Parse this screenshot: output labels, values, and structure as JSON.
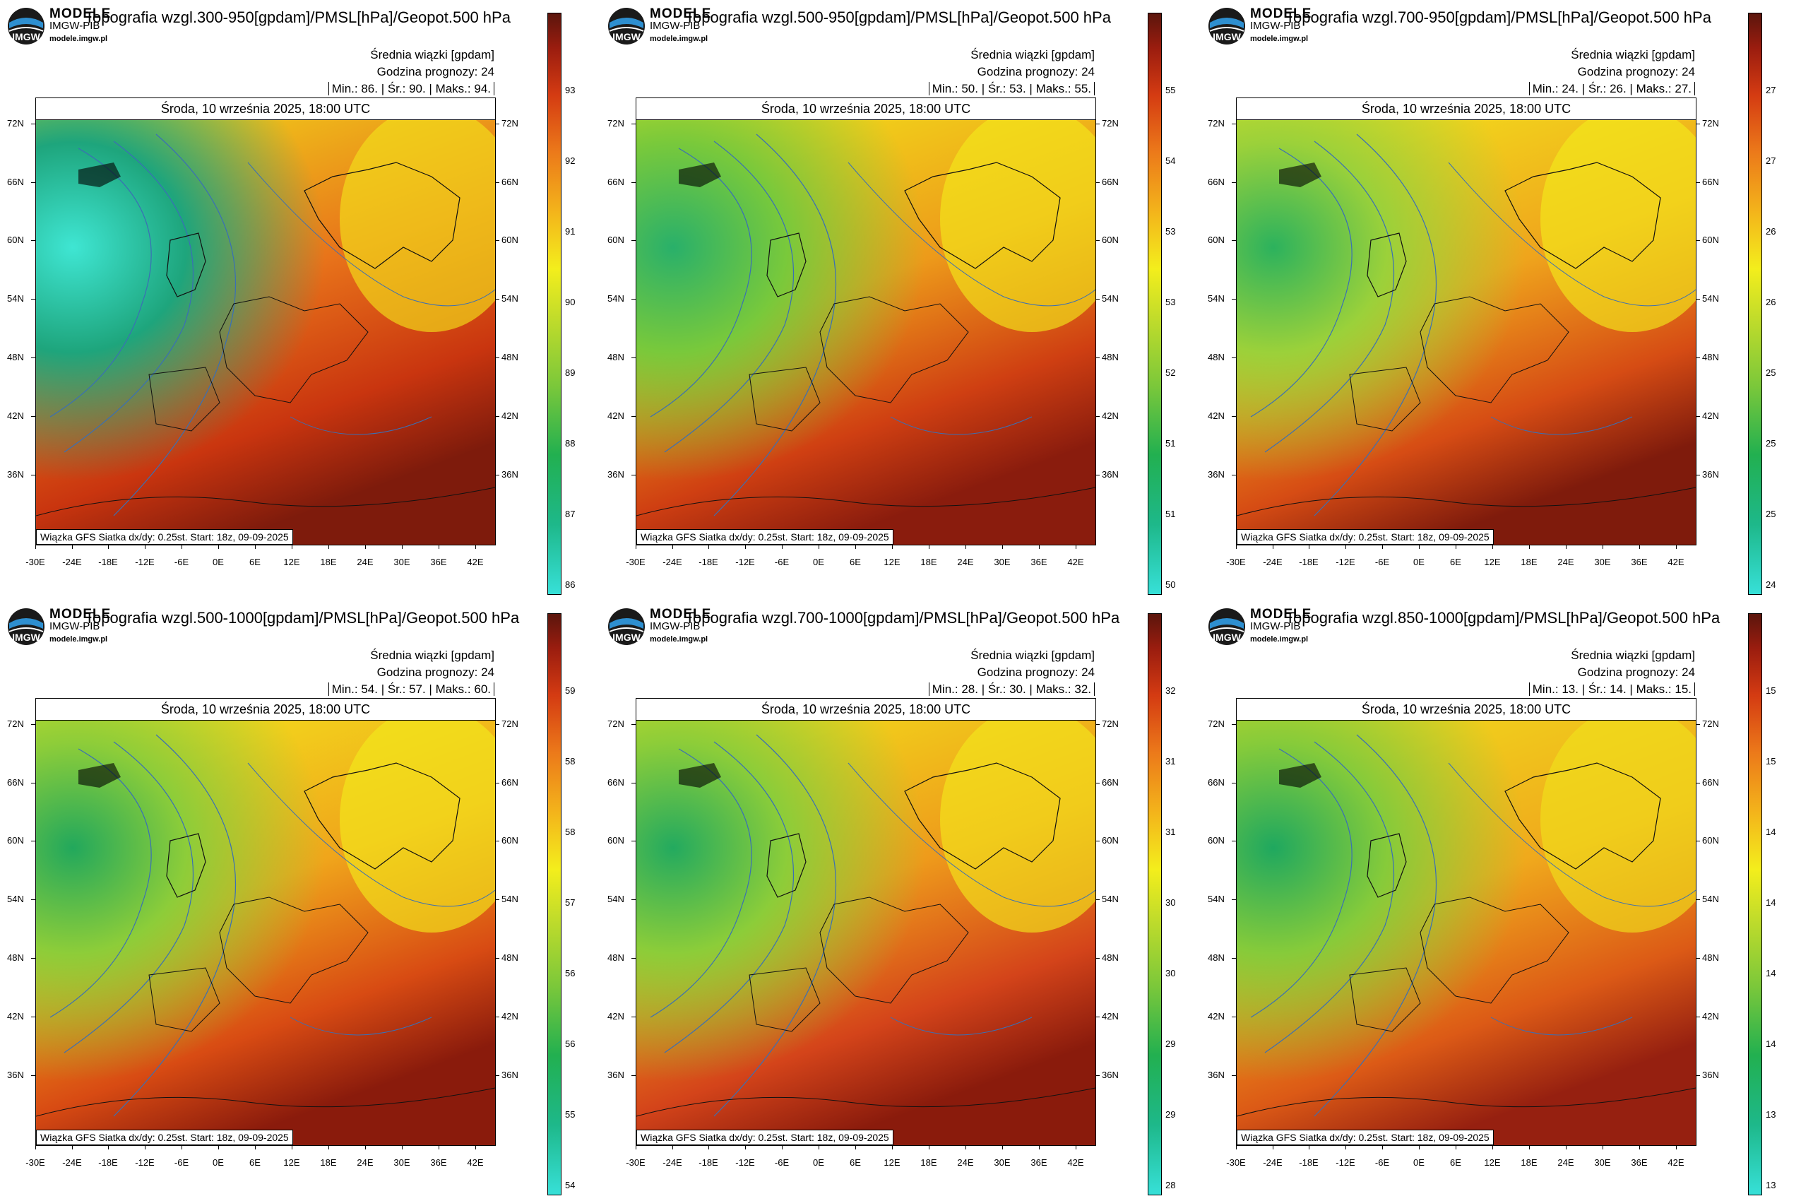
{
  "brand": {
    "line1": "MODELE",
    "line2": "IMGW-PIB",
    "url": "modele.imgw.pl",
    "logo_text": "IMGW"
  },
  "common": {
    "subtitle": "Średnia wiązki [gpdam]",
    "forecast_hour": "Godzina prognozy: 24",
    "valid_time": "Środa, 10 września 2025, 18:00 UTC",
    "footer": "Wiązka GFS Siatka dx/dy: 0.25st. Start: 18z, 09-09-2025",
    "lat_ticks": [
      "72N",
      "66N",
      "60N",
      "54N",
      "48N",
      "42N",
      "36N"
    ],
    "lon_ticks": [
      "-30E",
      "-24E",
      "-18E",
      "-12E",
      "-6E",
      "0E",
      "6E",
      "12E",
      "18E",
      "24E",
      "30E",
      "36E",
      "42E"
    ]
  },
  "panels": [
    {
      "title": "Topografia wzgl.300-950[gpdam]/PMSL[hPa]/Geopot.500 hPa",
      "min": "86.",
      "avg": "90.",
      "max": "94.",
      "scale": [
        "93",
        "92",
        "91",
        "90",
        "89",
        "88",
        "87",
        "86"
      ]
    },
    {
      "title": "Topografia wzgl.500-950[gpdam]/PMSL[hPa]/Geopot.500 hPa",
      "min": "50.",
      "avg": "53.",
      "max": "55.",
      "scale": [
        "55",
        "54",
        "53",
        "53",
        "52",
        "51",
        "51",
        "50"
      ]
    },
    {
      "title": "Topografia wzgl.700-950[gpdam]/PMSL[hPa]/Geopot.500 hPa",
      "min": "24.",
      "avg": "26.",
      "max": "27.",
      "scale": [
        "27",
        "27",
        "26",
        "26",
        "25",
        "25",
        "25",
        "24"
      ]
    },
    {
      "title": "Topografia wzgl.500-1000[gpdam]/PMSL[hPa]/Geopot.500 hPa",
      "min": "54.",
      "avg": "57.",
      "max": "60.",
      "scale": [
        "59",
        "58",
        "58",
        "57",
        "56",
        "56",
        "55",
        "54"
      ]
    },
    {
      "title": "Topografia wzgl.700-1000[gpdam]/PMSL[hPa]/Geopot.500 hPa",
      "min": "28.",
      "avg": "30.",
      "max": "32.",
      "scale": [
        "32",
        "31",
        "31",
        "30",
        "30",
        "29",
        "29",
        "28"
      ]
    },
    {
      "title": "Topografia wzgl.850-1000[gpdam]/PMSL[hPa]/Geopot.500 hPa",
      "min": "13.",
      "avg": "14.",
      "max": "15.",
      "scale": [
        "15",
        "15",
        "14",
        "14",
        "14",
        "14",
        "13",
        "13"
      ]
    }
  ]
}
